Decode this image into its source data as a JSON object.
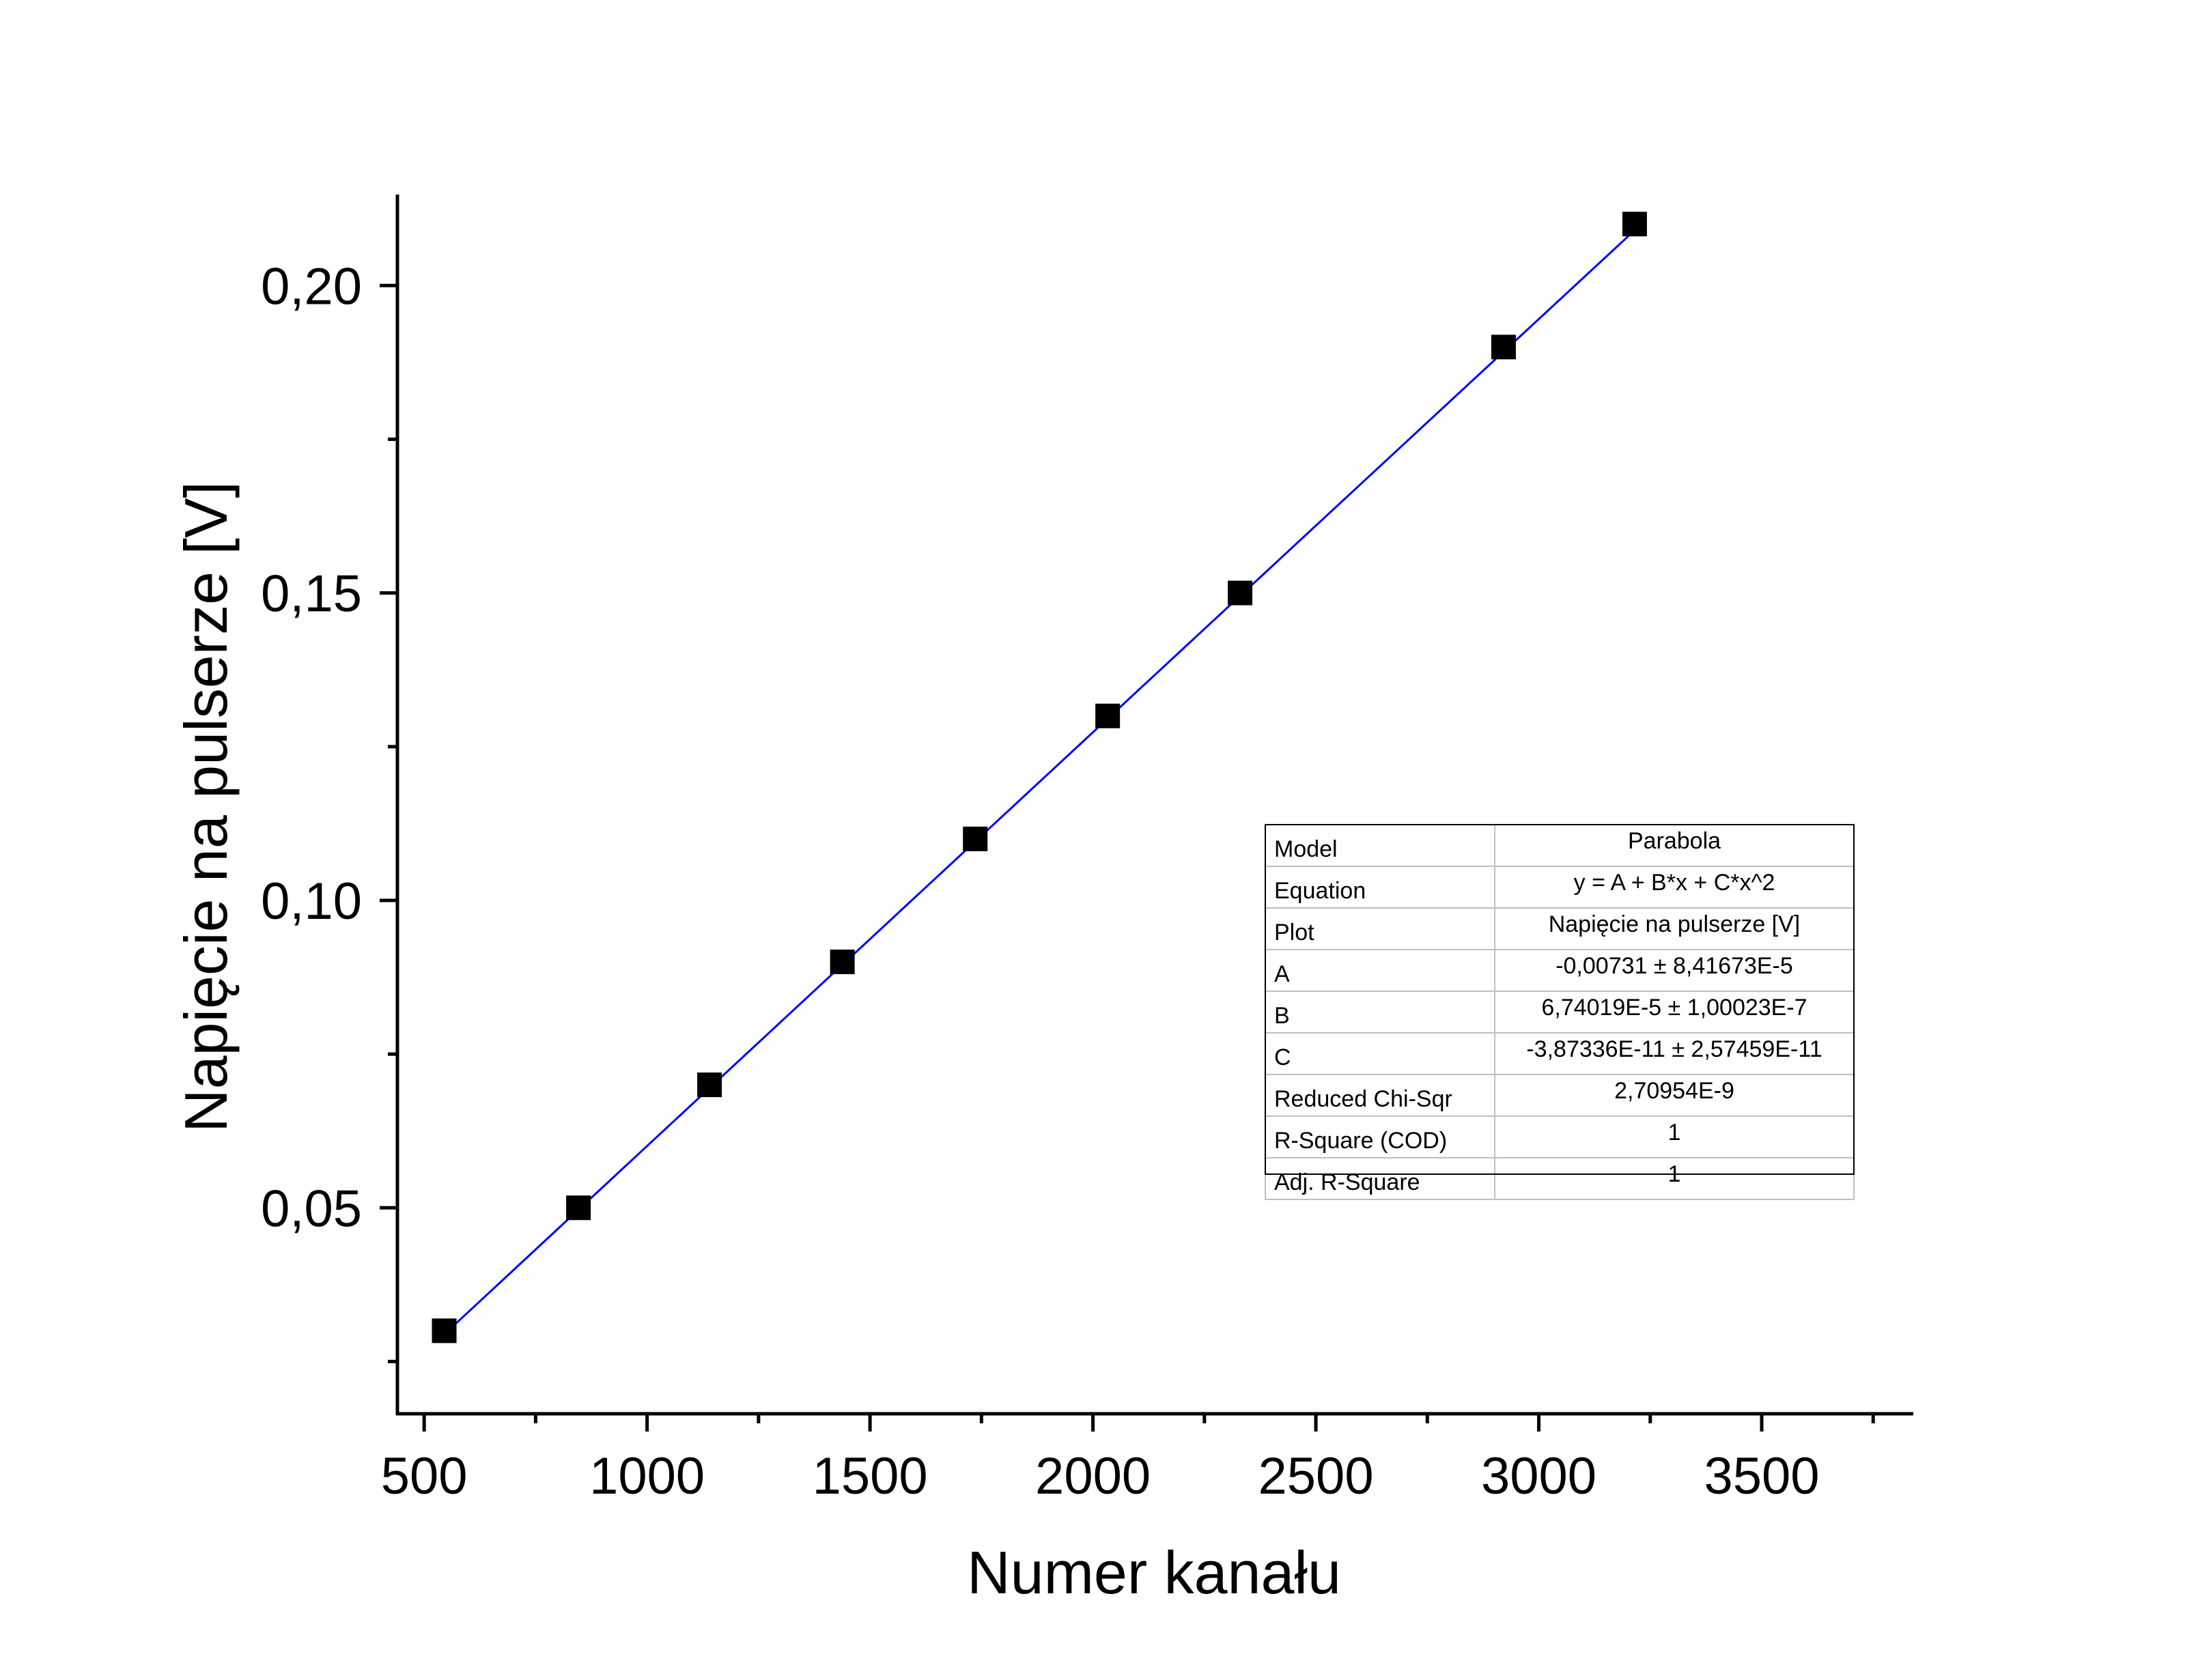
{
  "chart_data": {
    "type": "scatter",
    "title": "",
    "xlabel": "Numer kanału",
    "ylabel": "Napięcie na pulserze [V]",
    "xlim": [
      440,
      3840
    ],
    "ylim": [
      0.0165,
      0.2148
    ],
    "xticks": [
      500,
      1000,
      1500,
      2000,
      2500,
      3000,
      3500
    ],
    "xtick_labels": [
      "500",
      "1000",
      "1500",
      "2000",
      "2500",
      "3000",
      "3500"
    ],
    "xminor": [
      750,
      1250,
      1750,
      2250,
      2750,
      3250,
      3750
    ],
    "yticks": [
      0.05,
      0.1,
      0.15,
      0.2
    ],
    "ytick_labels": [
      "0,05",
      "0,10",
      "0,15",
      "0,20"
    ],
    "yminor": [
      0.025,
      0.075,
      0.125,
      0.175
    ],
    "grid": false,
    "series": [
      {
        "marker": "square",
        "color": "#000000",
        "x": [
          545,
          846,
          1140,
          1438,
          1736,
          2033,
          2330,
          2921,
          3215
        ],
        "y": [
          0.03,
          0.05,
          0.07,
          0.09,
          0.11,
          0.13,
          0.15,
          0.19,
          0.21
        ]
      }
    ],
    "fit": {
      "color": "#0000ff",
      "A": -0.00731,
      "B": 6.74019e-05,
      "C": -3.87336e-11,
      "x_range": [
        545,
        3215
      ]
    }
  },
  "fit_table": [
    {
      "key": "Model",
      "value": "Parabola"
    },
    {
      "key": "Equation",
      "value": "y = A + B*x + C*x^2"
    },
    {
      "key": "Plot",
      "value": "Napięcie na pulserze [V]"
    },
    {
      "key": "A",
      "value": "-0,00731 ± 8,41673E-5"
    },
    {
      "key": "B",
      "value": "6,74019E-5 ± 1,00023E-7"
    },
    {
      "key": "C",
      "value": "-3,87336E-11 ± 2,57459E-11"
    },
    {
      "key": "Reduced Chi-Sqr",
      "value": "2,70954E-9"
    },
    {
      "key": "R-Square (COD)",
      "value": "1"
    },
    {
      "key": "Adj. R-Square",
      "value": "1"
    }
  ]
}
